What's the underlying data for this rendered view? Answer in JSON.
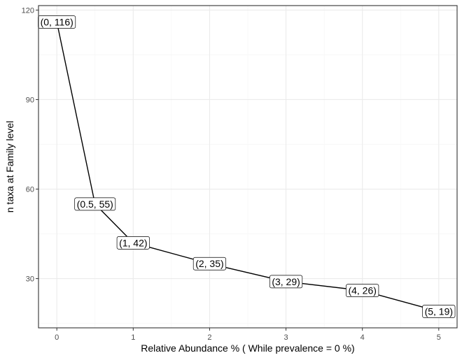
{
  "chart_data": {
    "type": "line",
    "xlabel": "Relative Abundance % ( While prevalence = 0 %)",
    "ylabel": "n taxa at Family level",
    "xlim": [
      -0.24,
      5.24
    ],
    "ylim": [
      13.5,
      121.5
    ],
    "x_ticks": [
      0,
      1,
      2,
      3,
      4,
      5
    ],
    "x_tick_labels": [
      "0",
      "1",
      "2",
      "3",
      "4",
      "5"
    ],
    "y_ticks": [
      30,
      60,
      90,
      120
    ],
    "y_tick_labels": [
      "30",
      "60",
      "90",
      "120"
    ],
    "grid": true,
    "legend": "none",
    "series": [
      {
        "x": [
          0,
          0.5,
          1,
          2,
          3,
          4,
          5
        ],
        "y": [
          116,
          55,
          42,
          35,
          29,
          26,
          19
        ],
        "labels": [
          "(0, 116)",
          "(0.5, 55)",
          "(1, 42)",
          "(2, 35)",
          "(3, 29)",
          "(4, 26)",
          "(5, 19)"
        ]
      }
    ]
  },
  "colors": {
    "line": "#000000",
    "grid_major": "#ebebeb",
    "grid_minor": "#f5f5f5",
    "panel_border": "#333333",
    "label_fill": "#ffffff"
  }
}
